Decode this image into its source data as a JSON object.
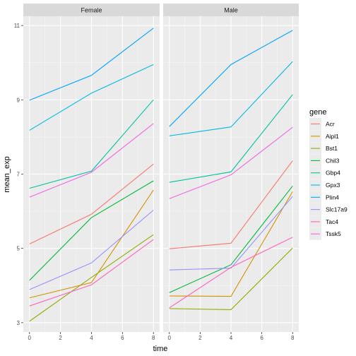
{
  "chart_data": {
    "type": "line",
    "xlabel": "time",
    "ylabel": "mean_exp",
    "x": [
      0,
      4,
      8
    ],
    "x_ticks": [
      0,
      2,
      4,
      6,
      8
    ],
    "y_ticks": [
      3,
      5,
      7,
      9,
      11
    ],
    "xlim": [
      -0.4,
      8.4
    ],
    "ylim": [
      2.75,
      11.25
    ],
    "grid": true,
    "legend_title": "gene",
    "legend_position": "right",
    "facets": [
      {
        "label": "Female",
        "series": [
          {
            "name": "Acr",
            "color": "#F8766D",
            "values": [
              5.12,
              5.92,
              7.27
            ]
          },
          {
            "name": "Aipl1",
            "color": "#D39200",
            "values": [
              3.67,
              4.08,
              6.57
            ]
          },
          {
            "name": "Bst1",
            "color": "#93AA00",
            "values": [
              3.04,
              4.22,
              5.37
            ]
          },
          {
            "name": "Chil3",
            "color": "#00BA38",
            "values": [
              4.14,
              5.83,
              6.82
            ]
          },
          {
            "name": "Gbp4",
            "color": "#00C19F",
            "values": [
              6.62,
              7.08,
              9.0
            ]
          },
          {
            "name": "Gpx3",
            "color": "#00B9E3",
            "values": [
              8.18,
              9.18,
              9.95
            ]
          },
          {
            "name": "Plin4",
            "color": "#00A5FF",
            "values": [
              8.99,
              9.66,
              10.93
            ]
          },
          {
            "name": "Slc17a9",
            "color": "#9590FF",
            "values": [
              3.89,
              4.61,
              6.03
            ]
          },
          {
            "name": "Tac4",
            "color": "#FF62BC",
            "values": [
              3.45,
              4.02,
              5.24
            ]
          },
          {
            "name": "Tssk5",
            "color": "#F564E3",
            "values": [
              6.38,
              7.05,
              8.36
            ]
          }
        ]
      },
      {
        "label": "Male",
        "series": [
          {
            "name": "Acr",
            "color": "#F8766D",
            "values": [
              4.99,
              5.14,
              7.36
            ]
          },
          {
            "name": "Aipl1",
            "color": "#D39200",
            "values": [
              3.72,
              3.71,
              6.53
            ]
          },
          {
            "name": "Bst1",
            "color": "#93AA00",
            "values": [
              3.38,
              3.35,
              5.01
            ]
          },
          {
            "name": "Chil3",
            "color": "#00BA38",
            "values": [
              3.81,
              4.56,
              6.68
            ]
          },
          {
            "name": "Gbp4",
            "color": "#00C19F",
            "values": [
              6.78,
              7.06,
              9.14
            ]
          },
          {
            "name": "Gpx3",
            "color": "#00B9E3",
            "values": [
              8.03,
              8.27,
              10.03
            ]
          },
          {
            "name": "Plin4",
            "color": "#00A5FF",
            "values": [
              8.28,
              9.95,
              10.87
            ]
          },
          {
            "name": "Slc17a9",
            "color": "#9590FF",
            "values": [
              4.42,
              4.47,
              6.4
            ]
          },
          {
            "name": "Tac4",
            "color": "#FF62BC",
            "values": [
              3.4,
              4.49,
              5.3
            ]
          },
          {
            "name": "Tssk5",
            "color": "#F564E3",
            "values": [
              6.34,
              6.98,
              8.26
            ]
          }
        ]
      }
    ]
  }
}
